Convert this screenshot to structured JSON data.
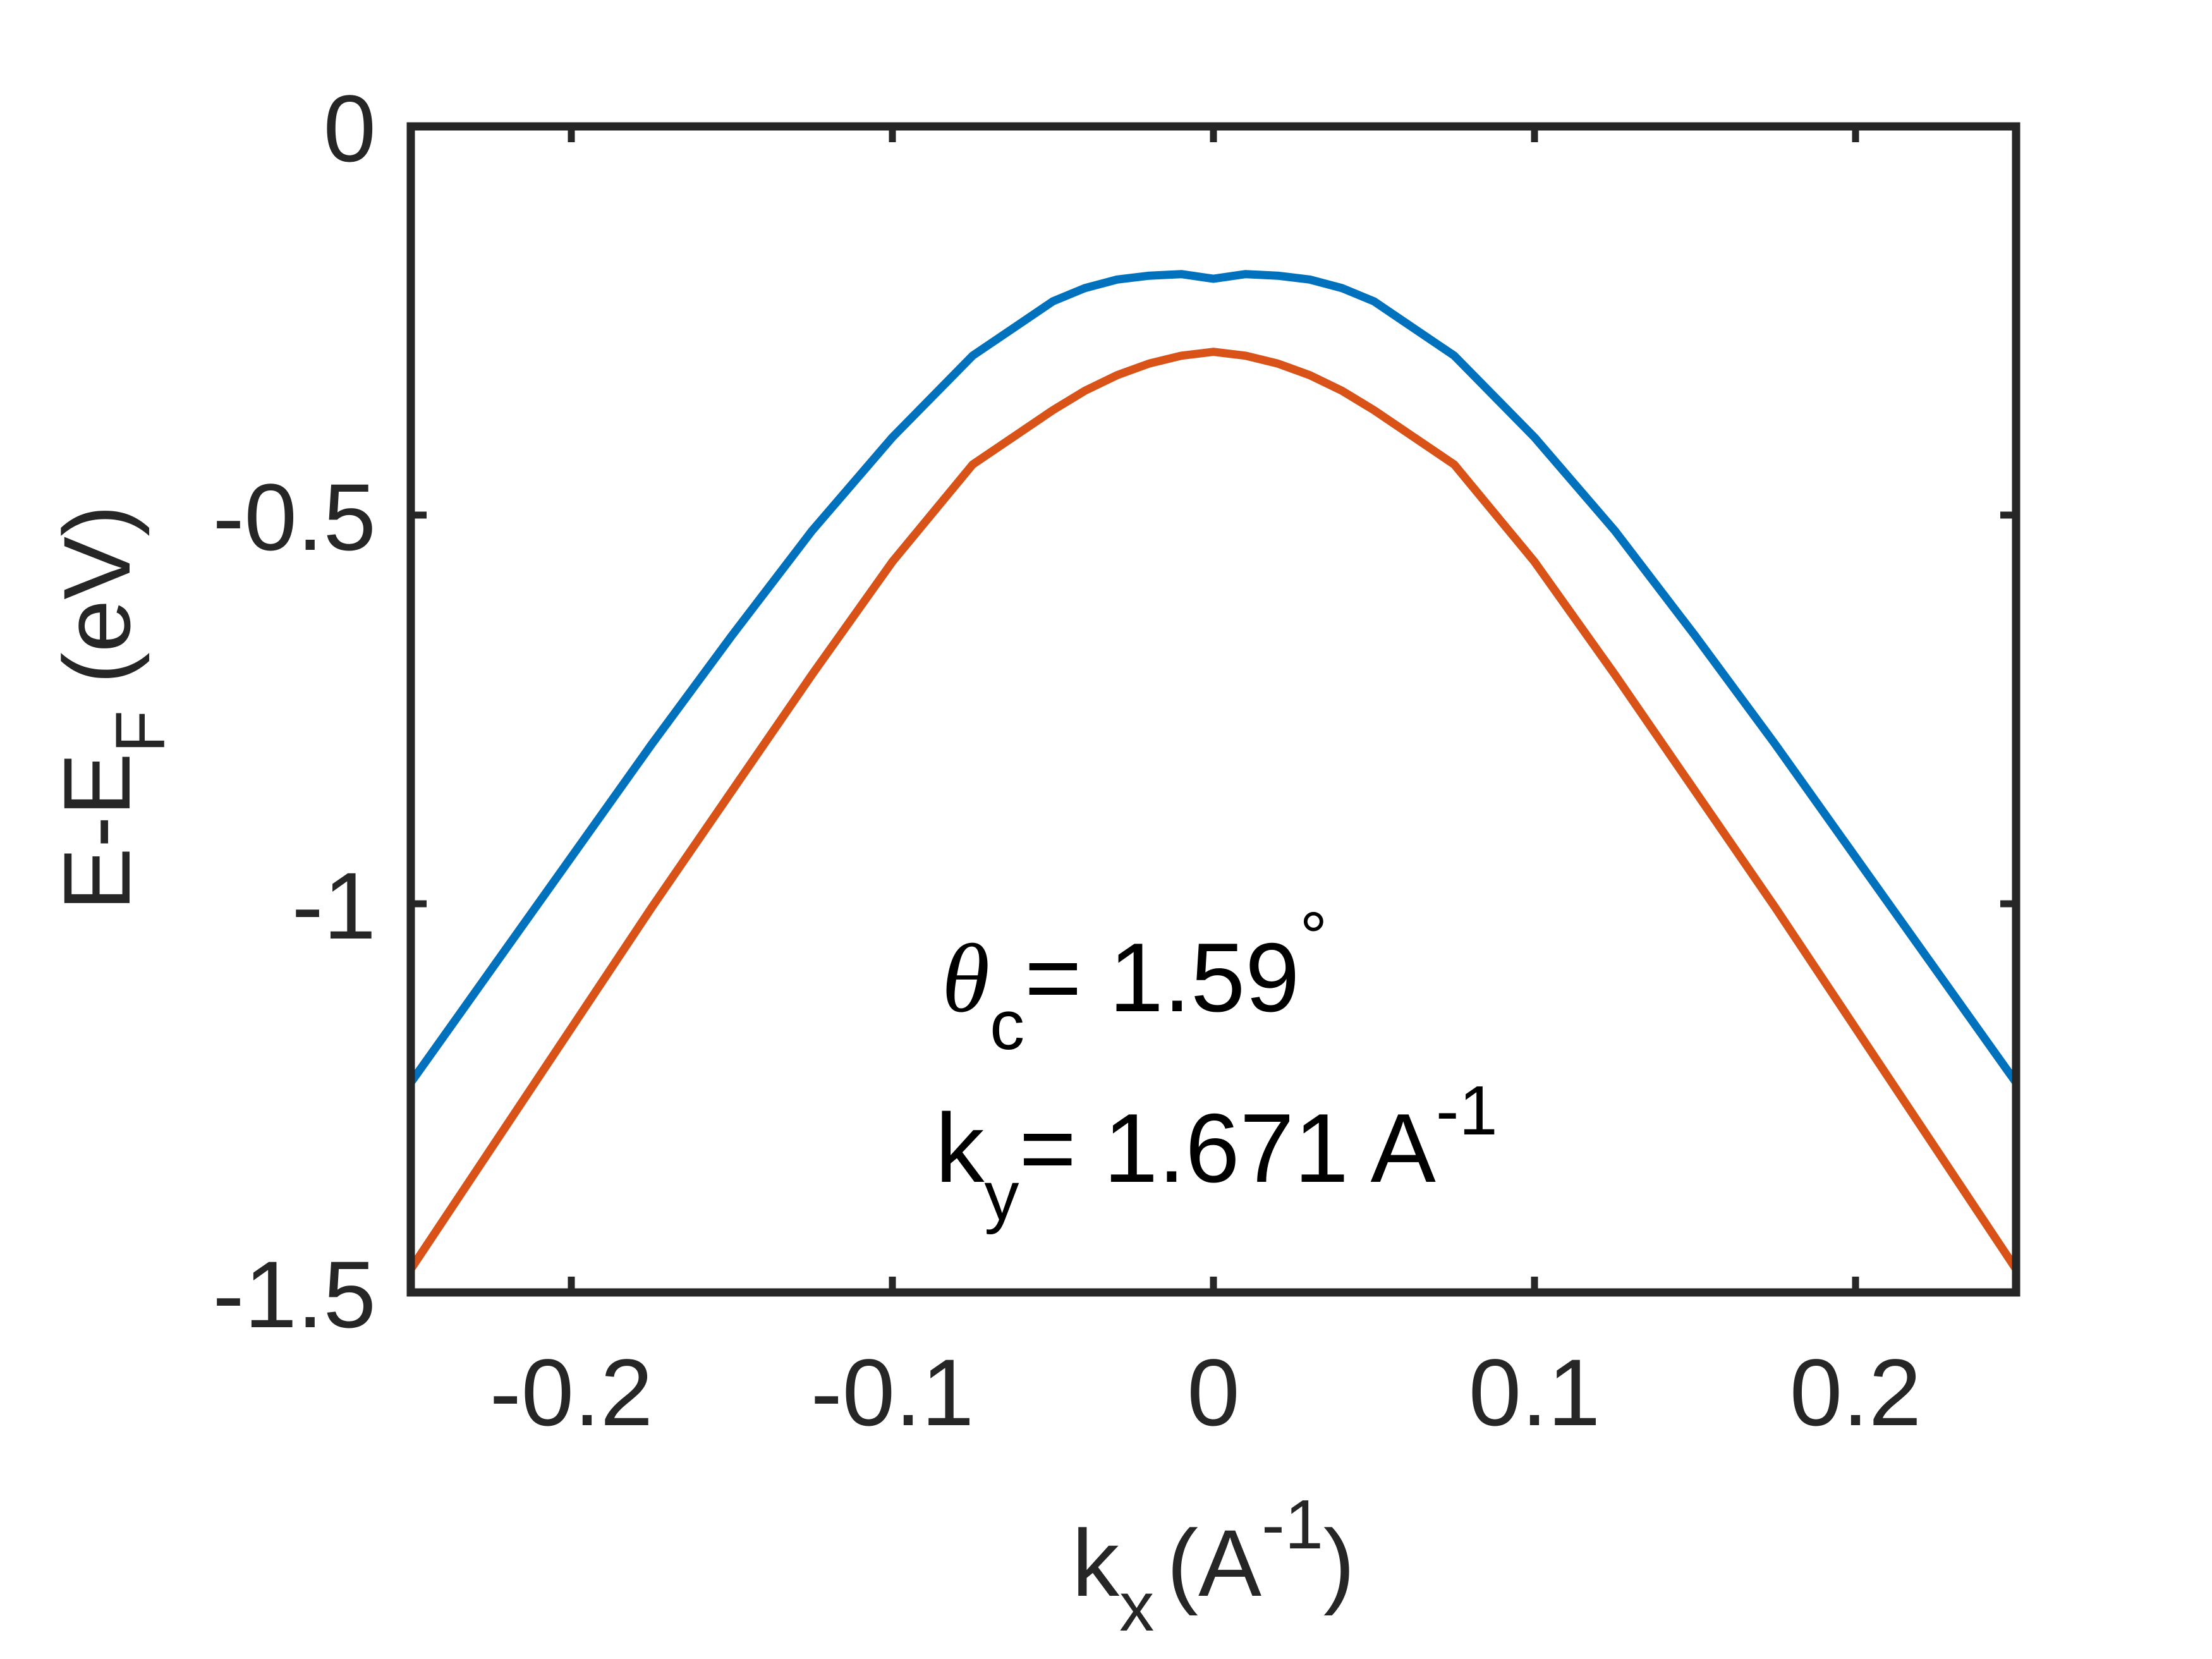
{
  "chart_data": {
    "type": "line",
    "xlabel": {
      "base": "k",
      "sub": "x",
      "unit": "(A",
      "sup": "-1",
      "close": ")"
    },
    "ylabel": {
      "base": "E-E",
      "sub": "F",
      "unit": " (eV)"
    },
    "xlim": [
      -0.25,
      0.25
    ],
    "ylim": [
      -1.5,
      0
    ],
    "x_ticks": [
      -0.2,
      -0.1,
      0,
      0.1,
      0.2
    ],
    "x_tick_labels": [
      "-0.2",
      "-0.1",
      "0",
      "0.1",
      "0.2"
    ],
    "y_ticks": [
      0,
      -0.5,
      -1,
      -1.5
    ],
    "y_tick_labels": [
      "0",
      "-0.5",
      "-1",
      "-1.5"
    ],
    "grid": false,
    "annotations": {
      "theta_symbol": "θ",
      "theta_sub": "c",
      "theta_value": "= 1.59",
      "theta_degree": "°",
      "ky_symbol": "k",
      "ky_sub": "y",
      "ky_value": "= 1.671 A",
      "ky_sup": "-1"
    },
    "series": [
      {
        "color": "#0072BD",
        "x": [
          -0.25,
          -0.225,
          -0.2,
          -0.175,
          -0.15,
          -0.125,
          -0.1,
          -0.075,
          -0.05,
          -0.04,
          -0.03,
          -0.02,
          -0.01,
          0,
          0.01,
          0.02,
          0.03,
          0.04,
          0.05,
          0.075,
          0.1,
          0.125,
          0.15,
          0.175,
          0.2,
          0.225,
          0.25
        ],
        "y": [
          -1.23,
          -1.085,
          -0.94,
          -0.795,
          -0.655,
          -0.52,
          -0.4,
          -0.295,
          -0.225,
          -0.208,
          -0.197,
          -0.192,
          -0.19,
          -0.196,
          -0.19,
          -0.192,
          -0.197,
          -0.208,
          -0.225,
          -0.295,
          -0.4,
          -0.52,
          -0.655,
          -0.795,
          -0.94,
          -1.085,
          -1.23
        ]
      },
      {
        "color": "#D95319",
        "x": [
          -0.25,
          -0.225,
          -0.2,
          -0.175,
          -0.15,
          -0.125,
          -0.1,
          -0.075,
          -0.05,
          -0.04,
          -0.03,
          -0.02,
          -0.01,
          0,
          0.01,
          0.02,
          0.03,
          0.04,
          0.05,
          0.075,
          0.1,
          0.125,
          0.15,
          0.175,
          0.2,
          0.225,
          0.25
        ],
        "y": [
          -1.47,
          -1.315,
          -1.16,
          -1.005,
          -0.855,
          -0.705,
          -0.56,
          -0.435,
          -0.365,
          -0.34,
          -0.32,
          -0.305,
          -0.295,
          -0.29,
          -0.295,
          -0.305,
          -0.32,
          -0.34,
          -0.365,
          -0.435,
          -0.56,
          -0.705,
          -0.855,
          -1.005,
          -1.16,
          -1.315,
          -1.47
        ]
      }
    ]
  }
}
